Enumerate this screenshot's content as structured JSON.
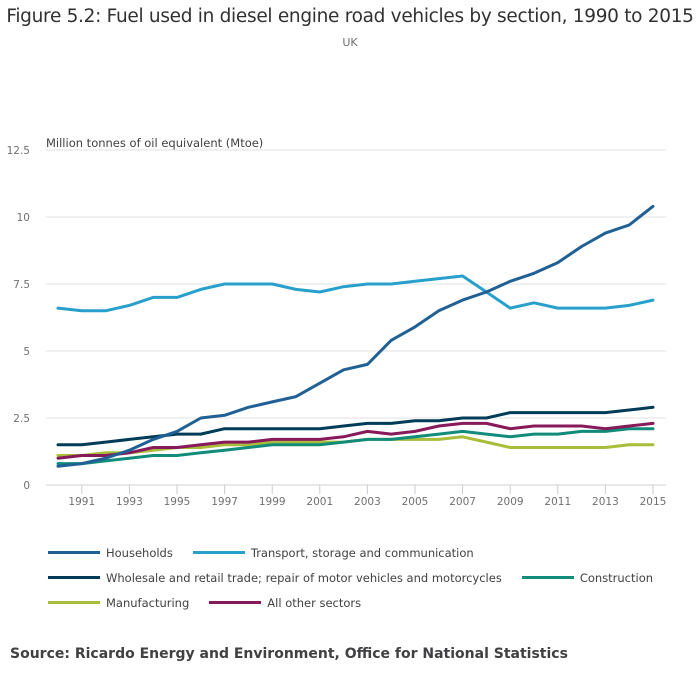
{
  "title": "Figure 5.2: Fuel used in diesel engine road vehicles by section, 1990 to 2015",
  "subtitle": "UK",
  "source": "Source: Ricardo Energy and Environment, Office for National Statistics",
  "chart_data": {
    "type": "line",
    "title": "Figure 5.2: Fuel used in diesel engine road vehicles by section, 1990 to 2015",
    "subtitle": "UK",
    "xlabel": "",
    "ylabel": "Million tonnes of oil equivalent (Mtoe)",
    "x": [
      1990,
      1991,
      1992,
      1993,
      1994,
      1995,
      1996,
      1997,
      1998,
      1999,
      2000,
      2001,
      2002,
      2003,
      2004,
      2005,
      2006,
      2007,
      2008,
      2009,
      2010,
      2011,
      2012,
      2013,
      2014,
      2015
    ],
    "x_tick_labels": [
      "1991",
      "1993",
      "1995",
      "1997",
      "1999",
      "2001",
      "2003",
      "2005",
      "2007",
      "2009",
      "2011",
      "2013",
      "2015"
    ],
    "y_tick_labels": [
      "0",
      "2.5",
      "5",
      "7.5",
      "10",
      "12.5"
    ],
    "y_ticks": [
      0,
      2.5,
      5,
      7.5,
      10,
      12.5
    ],
    "xlim": [
      1990,
      2015
    ],
    "ylim": [
      0,
      12.5
    ],
    "grid": true,
    "legend_position": "bottom",
    "series": [
      {
        "name": "Households",
        "color": "#206095",
        "values": [
          0.7,
          0.8,
          1.0,
          1.3,
          1.7,
          2.0,
          2.5,
          2.6,
          2.9,
          3.1,
          3.3,
          3.8,
          4.3,
          4.5,
          5.4,
          5.9,
          6.5,
          6.9,
          7.2,
          7.6,
          7.9,
          8.3,
          8.9,
          9.4,
          9.7,
          10.4
        ]
      },
      {
        "name": "Transport, storage and communication",
        "color": "#27a0cc",
        "values": [
          6.6,
          6.5,
          6.5,
          6.7,
          7.0,
          7.0,
          7.3,
          7.5,
          7.5,
          7.5,
          7.3,
          7.2,
          7.4,
          7.5,
          7.5,
          7.6,
          7.7,
          7.8,
          7.2,
          6.6,
          6.8,
          6.6,
          6.6,
          6.6,
          6.7,
          6.9
        ]
      },
      {
        "name": "Wholesale and retail trade; repair of motor vehicles and motorcycles",
        "color": "#003c57",
        "values": [
          1.5,
          1.5,
          1.6,
          1.7,
          1.8,
          1.9,
          1.9,
          2.1,
          2.1,
          2.1,
          2.1,
          2.1,
          2.2,
          2.3,
          2.3,
          2.4,
          2.4,
          2.5,
          2.5,
          2.7,
          2.7,
          2.7,
          2.7,
          2.7,
          2.8,
          2.9
        ]
      },
      {
        "name": "Construction",
        "color": "#118c7b",
        "values": [
          0.8,
          0.8,
          0.9,
          1.0,
          1.1,
          1.1,
          1.2,
          1.3,
          1.4,
          1.5,
          1.5,
          1.5,
          1.6,
          1.7,
          1.7,
          1.8,
          1.9,
          2.0,
          1.9,
          1.8,
          1.9,
          1.9,
          2.0,
          2.0,
          2.1,
          2.1
        ]
      },
      {
        "name": "Manufacturing",
        "color": "#a8bd3a",
        "values": [
          1.1,
          1.1,
          1.2,
          1.2,
          1.3,
          1.4,
          1.4,
          1.5,
          1.5,
          1.6,
          1.6,
          1.6,
          1.6,
          1.7,
          1.7,
          1.7,
          1.7,
          1.8,
          1.6,
          1.4,
          1.4,
          1.4,
          1.4,
          1.4,
          1.5,
          1.5
        ]
      },
      {
        "name": "All other sectors",
        "color": "#871a5b",
        "values": [
          1.0,
          1.1,
          1.1,
          1.2,
          1.4,
          1.4,
          1.5,
          1.6,
          1.6,
          1.7,
          1.7,
          1.7,
          1.8,
          2.0,
          1.9,
          2.0,
          2.2,
          2.3,
          2.3,
          2.1,
          2.2,
          2.2,
          2.2,
          2.1,
          2.2,
          2.3
        ]
      }
    ]
  },
  "legend": {
    "rows": [
      [
        0,
        1
      ],
      [
        2,
        3
      ],
      [
        4,
        5
      ]
    ]
  }
}
